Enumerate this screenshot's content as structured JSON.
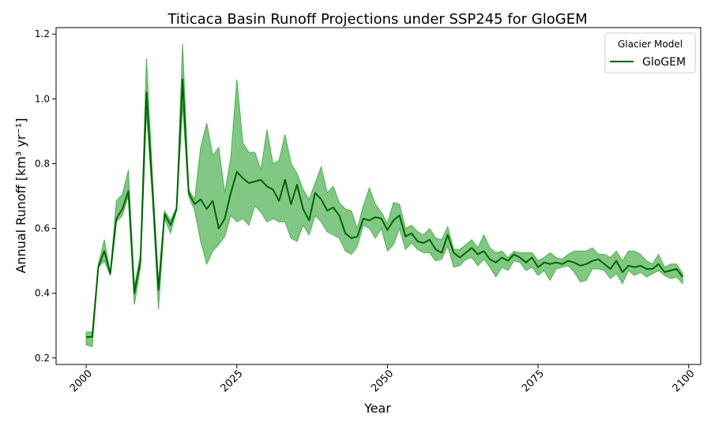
{
  "chart_data": {
    "type": "line",
    "title": "Titicaca Basin Runoff Projections under SSP245 for GloGEM",
    "xlabel": "Year",
    "ylabel": "Annual Runoff [km³ yr⁻¹]",
    "xlim": [
      1995,
      2102
    ],
    "ylim": [
      0.18,
      1.22
    ],
    "xticks": [
      2000,
      2025,
      2050,
      2075,
      2100
    ],
    "yticks": [
      0.2,
      0.4,
      0.6,
      0.8,
      1.0,
      1.2
    ],
    "ytick_labels": [
      "0.2",
      "0.4",
      "0.6",
      "0.8",
      "1.0",
      "1.2"
    ],
    "grid": false,
    "legend": {
      "title": "Glacier Model",
      "placement": "top-right"
    },
    "series": [
      {
        "name": "GloGEM",
        "color": "#006400",
        "band_color": "#4caf50",
        "x": [
          2000,
          2001,
          2002,
          2003,
          2004,
          2005,
          2006,
          2007,
          2008,
          2009,
          2010,
          2011,
          2012,
          2013,
          2014,
          2015,
          2016,
          2017,
          2018,
          2019,
          2020,
          2021,
          2022,
          2023,
          2024,
          2025,
          2026,
          2027,
          2028,
          2029,
          2030,
          2031,
          2032,
          2033,
          2034,
          2035,
          2036,
          2037,
          2038,
          2039,
          2040,
          2041,
          2042,
          2043,
          2044,
          2045,
          2046,
          2047,
          2048,
          2049,
          2050,
          2051,
          2052,
          2053,
          2054,
          2055,
          2056,
          2057,
          2058,
          2059,
          2060,
          2061,
          2062,
          2063,
          2064,
          2065,
          2066,
          2067,
          2068,
          2069,
          2070,
          2071,
          2072,
          2073,
          2074,
          2075,
          2076,
          2077,
          2078,
          2079,
          2080,
          2081,
          2082,
          2083,
          2084,
          2085,
          2086,
          2087,
          2088,
          2089,
          2090,
          2091,
          2092,
          2093,
          2094,
          2095,
          2096,
          2097,
          2098,
          2099
        ],
        "mean": [
          0.265,
          0.265,
          0.48,
          0.53,
          0.46,
          0.63,
          0.66,
          0.715,
          0.4,
          0.5,
          1.02,
          0.72,
          0.41,
          0.645,
          0.61,
          0.66,
          1.06,
          0.71,
          0.675,
          0.69,
          0.66,
          0.685,
          0.6,
          0.63,
          0.71,
          0.775,
          0.755,
          0.74,
          0.745,
          0.75,
          0.73,
          0.72,
          0.685,
          0.75,
          0.675,
          0.735,
          0.66,
          0.625,
          0.71,
          0.69,
          0.655,
          0.665,
          0.64,
          0.585,
          0.57,
          0.575,
          0.63,
          0.625,
          0.635,
          0.63,
          0.595,
          0.625,
          0.64,
          0.575,
          0.585,
          0.56,
          0.555,
          0.565,
          0.535,
          0.525,
          0.58,
          0.525,
          0.51,
          0.525,
          0.54,
          0.52,
          0.53,
          0.505,
          0.495,
          0.51,
          0.5,
          0.52,
          0.51,
          0.495,
          0.51,
          0.48,
          0.495,
          0.49,
          0.495,
          0.49,
          0.5,
          0.495,
          0.485,
          0.49,
          0.5,
          0.505,
          0.49,
          0.475,
          0.5,
          0.465,
          0.485,
          0.48,
          0.485,
          0.475,
          0.475,
          0.49,
          0.465,
          0.47,
          0.475,
          0.45
        ],
        "lower": [
          0.24,
          0.235,
          0.48,
          0.5,
          0.455,
          0.62,
          0.64,
          0.7,
          0.365,
          0.48,
          0.96,
          0.69,
          0.35,
          0.63,
          0.585,
          0.655,
          0.98,
          0.7,
          0.655,
          0.56,
          0.49,
          0.53,
          0.55,
          0.575,
          0.64,
          0.62,
          0.63,
          0.61,
          0.67,
          0.65,
          0.62,
          0.63,
          0.62,
          0.62,
          0.57,
          0.56,
          0.61,
          0.58,
          0.64,
          0.62,
          0.59,
          0.58,
          0.57,
          0.53,
          0.52,
          0.545,
          0.61,
          0.6,
          0.57,
          0.6,
          0.53,
          0.55,
          0.6,
          0.535,
          0.555,
          0.535,
          0.525,
          0.525,
          0.5,
          0.505,
          0.545,
          0.48,
          0.485,
          0.505,
          0.51,
          0.485,
          0.505,
          0.48,
          0.45,
          0.48,
          0.47,
          0.5,
          0.495,
          0.47,
          0.48,
          0.455,
          0.47,
          0.44,
          0.475,
          0.48,
          0.485,
          0.465,
          0.435,
          0.44,
          0.475,
          0.475,
          0.47,
          0.445,
          0.46,
          0.43,
          0.47,
          0.455,
          0.465,
          0.45,
          0.46,
          0.47,
          0.455,
          0.445,
          0.45,
          0.43
        ],
        "upper": [
          0.28,
          0.28,
          0.49,
          0.565,
          0.465,
          0.685,
          0.705,
          0.78,
          0.42,
          0.52,
          1.125,
          0.76,
          0.43,
          0.655,
          0.625,
          0.665,
          1.17,
          0.72,
          0.69,
          0.85,
          0.925,
          0.825,
          0.85,
          0.71,
          0.82,
          1.06,
          0.865,
          0.835,
          0.835,
          0.78,
          0.905,
          0.8,
          0.81,
          0.89,
          0.8,
          0.77,
          0.72,
          0.69,
          0.74,
          0.79,
          0.71,
          0.73,
          0.68,
          0.66,
          0.655,
          0.6,
          0.67,
          0.725,
          0.675,
          0.65,
          0.615,
          0.68,
          0.675,
          0.6,
          0.61,
          0.59,
          0.58,
          0.6,
          0.57,
          0.565,
          0.605,
          0.535,
          0.535,
          0.55,
          0.565,
          0.54,
          0.58,
          0.54,
          0.525,
          0.53,
          0.51,
          0.53,
          0.525,
          0.525,
          0.525,
          0.5,
          0.51,
          0.525,
          0.51,
          0.505,
          0.52,
          0.53,
          0.53,
          0.53,
          0.54,
          0.52,
          0.52,
          0.51,
          0.53,
          0.5,
          0.53,
          0.53,
          0.52,
          0.5,
          0.49,
          0.52,
          0.48,
          0.49,
          0.49,
          0.46
        ]
      }
    ]
  }
}
